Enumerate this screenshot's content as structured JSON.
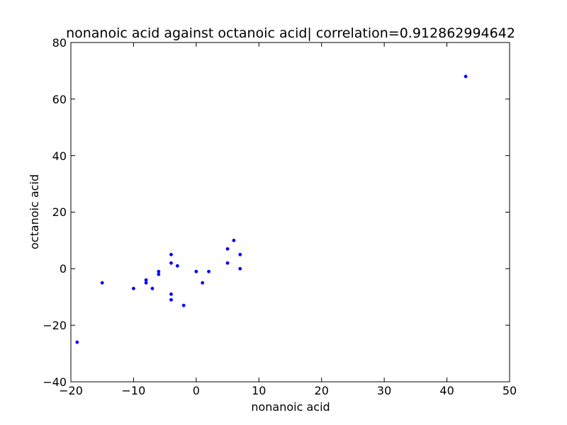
{
  "chart_data": {
    "type": "scatter",
    "title": "nonanoic acid against octanoic acid| correlation=0.912862994642",
    "xlabel": "nonanoic acid",
    "ylabel": "octanoic acid",
    "xlim": [
      -20,
      50
    ],
    "ylim": [
      -40,
      80
    ],
    "xticks": [
      "−20",
      "−10",
      "0",
      "10",
      "20",
      "30",
      "40",
      "50"
    ],
    "yticks": [
      "−40",
      "−20",
      "0",
      "20",
      "40",
      "60",
      "80"
    ],
    "grid": false,
    "marker_color": "#0000ff",
    "series": [
      {
        "x": [
          -19,
          -15,
          -10,
          -8,
          -8,
          -7,
          -6,
          -6,
          -4,
          -4,
          -4,
          -4,
          -3,
          -2,
          0,
          1,
          2,
          5,
          5,
          6,
          7,
          7,
          43
        ],
        "y": [
          -26,
          -5,
          -7,
          -4,
          -5,
          -7,
          -1,
          -2,
          5,
          2,
          -9,
          -11,
          1,
          -13,
          -1,
          -5,
          -1,
          7,
          2,
          10,
          5,
          0,
          68
        ]
      }
    ]
  }
}
